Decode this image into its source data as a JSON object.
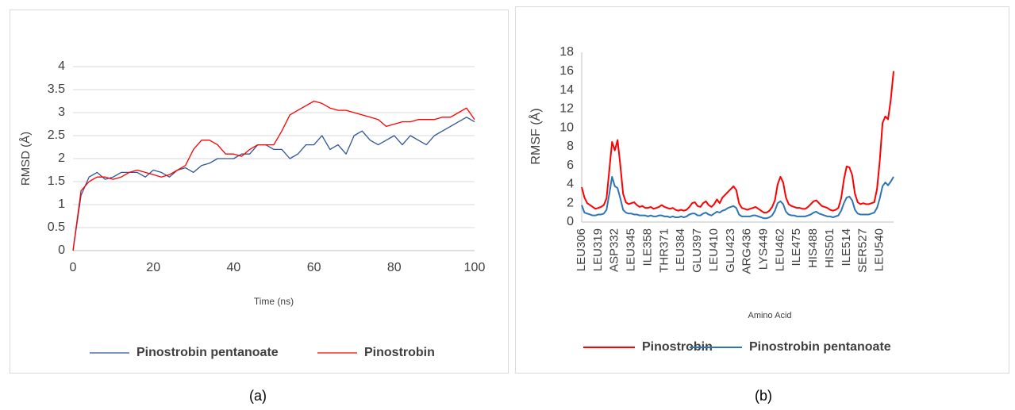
{
  "chart_data": [
    {
      "type": "line",
      "label": "(a)",
      "x_label": "Time (ns)",
      "y_label": "RMSD (Å)",
      "x": [
        0,
        2,
        4,
        6,
        8,
        10,
        12,
        14,
        16,
        18,
        20,
        22,
        24,
        26,
        28,
        30,
        32,
        34,
        36,
        38,
        40,
        42,
        44,
        46,
        48,
        50,
        52,
        54,
        56,
        58,
        60,
        62,
        64,
        66,
        68,
        70,
        72,
        74,
        76,
        78,
        80,
        82,
        84,
        86,
        88,
        90,
        92,
        94,
        96,
        98,
        100
      ],
      "series": [
        {
          "name": "Pinostrobin pentanoate",
          "color": "#2f5597",
          "values": [
            0,
            1.2,
            1.6,
            1.7,
            1.55,
            1.6,
            1.7,
            1.7,
            1.7,
            1.6,
            1.75,
            1.7,
            1.6,
            1.75,
            1.8,
            1.7,
            1.85,
            1.9,
            2.0,
            2.0,
            2.0,
            2.1,
            2.1,
            2.3,
            2.3,
            2.2,
            2.2,
            2.0,
            2.1,
            2.3,
            2.3,
            2.5,
            2.2,
            2.3,
            2.1,
            2.5,
            2.6,
            2.4,
            2.3,
            2.4,
            2.5,
            2.3,
            2.5,
            2.4,
            2.3,
            2.5,
            2.6,
            2.7,
            2.8,
            2.9,
            2.8
          ]
        },
        {
          "name": "Pinostrobin",
          "color": "#ff0000",
          "values": [
            0,
            1.3,
            1.5,
            1.6,
            1.6,
            1.55,
            1.6,
            1.7,
            1.75,
            1.7,
            1.65,
            1.6,
            1.65,
            1.75,
            1.85,
            2.2,
            2.4,
            2.4,
            2.3,
            2.1,
            2.1,
            2.05,
            2.2,
            2.3,
            2.3,
            2.3,
            2.6,
            2.95,
            3.05,
            3.15,
            3.25,
            3.2,
            3.1,
            3.05,
            3.05,
            3.0,
            2.95,
            2.9,
            2.85,
            2.7,
            2.75,
            2.8,
            2.8,
            2.85,
            2.85,
            2.85,
            2.9,
            2.9,
            3.0,
            3.1,
            2.85
          ]
        }
      ],
      "xlim": [
        0,
        100
      ],
      "xticks": [
        0,
        20,
        40,
        60,
        80,
        100
      ],
      "ylim": [
        0,
        4
      ],
      "yticks": [
        0,
        0.5,
        1,
        1.5,
        2,
        2.5,
        3,
        3.5,
        4
      ],
      "grid": true,
      "legend": "bottom"
    },
    {
      "type": "line",
      "label": "(b)",
      "x_label": "Amino Acid",
      "y_label": "RMSF (Å)",
      "categories": [
        "LEU306",
        null,
        null,
        null,
        null,
        null,
        "LEU319",
        null,
        null,
        null,
        null,
        null,
        "ASP332",
        null,
        null,
        null,
        null,
        null,
        "LEU345",
        null,
        null,
        null,
        null,
        null,
        "ILE358",
        null,
        null,
        null,
        null,
        null,
        "THR371",
        null,
        null,
        null,
        null,
        null,
        "LEU384",
        null,
        null,
        null,
        null,
        null,
        "GLU397",
        null,
        null,
        null,
        null,
        null,
        "LEU410",
        null,
        null,
        null,
        null,
        null,
        "GLU423",
        null,
        null,
        null,
        null,
        null,
        "ARG436",
        null,
        null,
        null,
        null,
        null,
        "LYS449",
        null,
        null,
        null,
        null,
        null,
        "LEU462",
        null,
        null,
        null,
        null,
        null,
        "ILE475",
        null,
        null,
        null,
        null,
        null,
        "HIS488",
        null,
        null,
        null,
        null,
        null,
        "HIS501",
        null,
        null,
        null,
        null,
        null,
        "ILE514",
        null,
        null,
        null,
        null,
        null,
        "SER527",
        null,
        null,
        null,
        null,
        null,
        "LEU540",
        null,
        null,
        null,
        null,
        null
      ],
      "series": [
        {
          "name": "Pinostrobin",
          "color": "#ff0000",
          "values": [
            3.7,
            2.6,
            2.0,
            1.8,
            1.6,
            1.4,
            1.5,
            1.6,
            1.8,
            2.5,
            5.5,
            8.5,
            7.6,
            8.7,
            6.0,
            3.0,
            2.1,
            1.9,
            2.0,
            2.1,
            1.8,
            1.6,
            1.7,
            1.5,
            1.5,
            1.6,
            1.4,
            1.5,
            1.6,
            1.8,
            1.6,
            1.5,
            1.4,
            1.5,
            1.3,
            1.2,
            1.3,
            1.2,
            1.3,
            1.6,
            2.0,
            2.1,
            1.7,
            1.6,
            2.0,
            2.2,
            1.8,
            1.6,
            1.9,
            2.4,
            2.0,
            2.6,
            2.9,
            3.2,
            3.5,
            3.8,
            3.4,
            2.0,
            1.5,
            1.4,
            1.3,
            1.4,
            1.5,
            1.6,
            1.4,
            1.2,
            1.0,
            1.0,
            1.2,
            1.6,
            2.3,
            4.0,
            4.8,
            4.2,
            2.6,
            1.9,
            1.7,
            1.6,
            1.5,
            1.5,
            1.4,
            1.4,
            1.6,
            1.9,
            2.2,
            2.3,
            2.0,
            1.7,
            1.6,
            1.5,
            1.3,
            1.2,
            1.3,
            1.5,
            2.5,
            4.5,
            5.9,
            5.8,
            5.0,
            3.0,
            2.1,
            1.9,
            2.0,
            1.9,
            1.9,
            2.0,
            2.1,
            3.5,
            6.5,
            10.5,
            11.2,
            10.9,
            13.0,
            16.0
          ]
        },
        {
          "name": "Pinostrobin pentanoate",
          "color": "#2e75b6",
          "values": [
            1.8,
            1.0,
            0.9,
            0.8,
            0.7,
            0.7,
            0.8,
            0.8,
            0.9,
            1.3,
            3.0,
            4.8,
            3.8,
            3.6,
            2.5,
            1.3,
            1.0,
            0.9,
            0.9,
            0.8,
            0.8,
            0.7,
            0.7,
            0.7,
            0.6,
            0.7,
            0.6,
            0.6,
            0.7,
            0.7,
            0.6,
            0.6,
            0.5,
            0.6,
            0.5,
            0.5,
            0.6,
            0.5,
            0.6,
            0.8,
            0.9,
            0.9,
            0.7,
            0.7,
            0.9,
            1.0,
            0.8,
            0.7,
            0.9,
            1.1,
            1.0,
            1.2,
            1.3,
            1.5,
            1.6,
            1.7,
            1.5,
            0.8,
            0.6,
            0.6,
            0.6,
            0.6,
            0.7,
            0.7,
            0.6,
            0.5,
            0.4,
            0.4,
            0.5,
            0.7,
            1.2,
            2.0,
            2.2,
            1.9,
            1.1,
            0.8,
            0.7,
            0.7,
            0.6,
            0.6,
            0.6,
            0.6,
            0.7,
            0.8,
            1.0,
            1.1,
            0.9,
            0.8,
            0.7,
            0.6,
            0.6,
            0.5,
            0.6,
            0.7,
            1.2,
            2.0,
            2.6,
            2.7,
            2.3,
            1.3,
            0.9,
            0.8,
            0.8,
            0.8,
            0.8,
            0.9,
            1.0,
            1.5,
            2.5,
            3.8,
            4.2,
            3.9,
            4.3,
            4.8
          ]
        }
      ],
      "ylim": [
        0,
        18
      ],
      "yticks": [
        0,
        2,
        4,
        6,
        8,
        10,
        12,
        14,
        16,
        18
      ],
      "grid": false,
      "legend": "bottom"
    }
  ]
}
